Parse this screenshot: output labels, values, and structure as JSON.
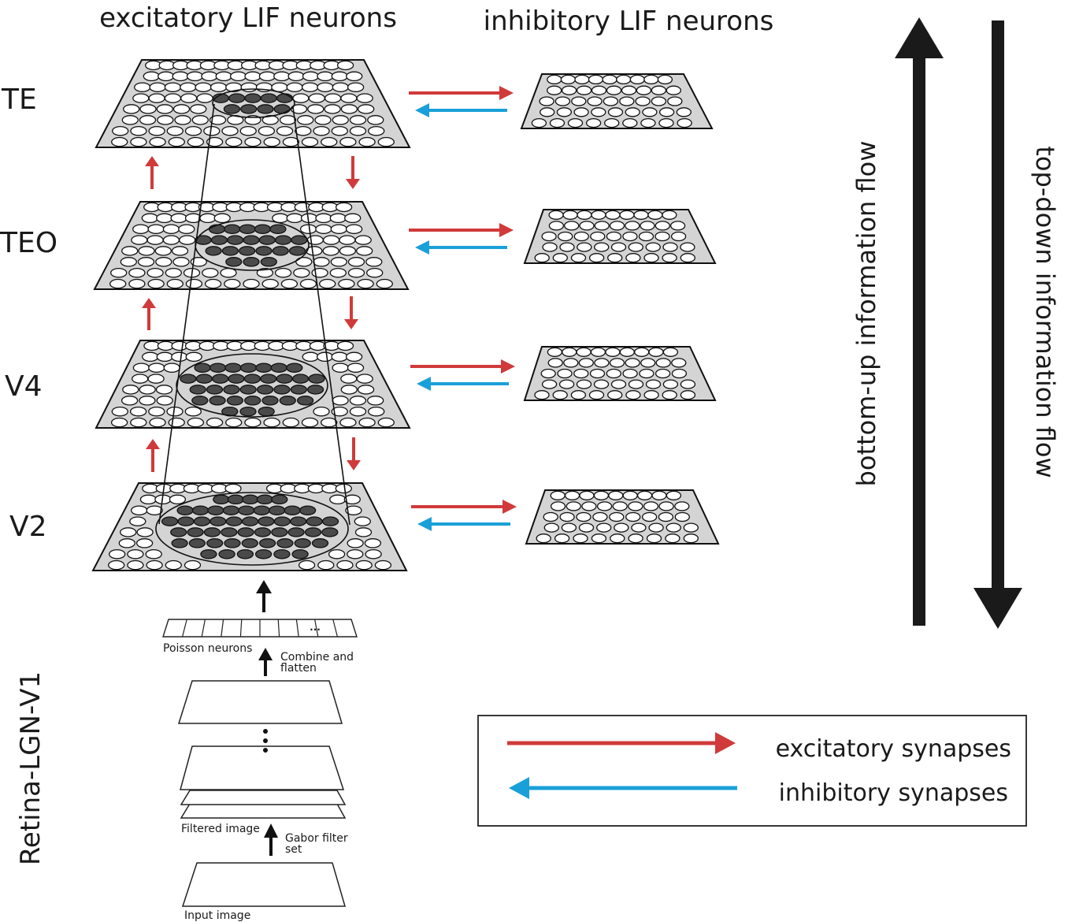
{
  "headers": {
    "excitatory": "excitatory LIF neurons",
    "inhibitory": "inhibitory LIF neurons"
  },
  "layers": [
    {
      "label": "TE"
    },
    {
      "label": "TEO"
    },
    {
      "label": "V4"
    },
    {
      "label": "V2"
    }
  ],
  "flows": {
    "bottom_up": "bottom-up information flow",
    "top_down": "top-down information flow"
  },
  "retina": {
    "label": "Retina-LGN-V1",
    "poisson": "Poisson neurons",
    "ellipsis": "...",
    "combine_line1": "Combine and",
    "combine_line2": "flatten",
    "filtered": "Filtered image",
    "gabor_line1": "Gabor filter",
    "gabor_line2": "set",
    "input": "Input image"
  },
  "legend": {
    "excitatory": "excitatory synapses",
    "inhibitory": "inhibitory synapses"
  },
  "colors": {
    "excitatory": "#d03a3a",
    "inhibitory": "#1aa0d8",
    "plane": "#d4d4d4",
    "neuron_active": "#4a4a4a",
    "flow_arrow": "#1a1a1a"
  }
}
